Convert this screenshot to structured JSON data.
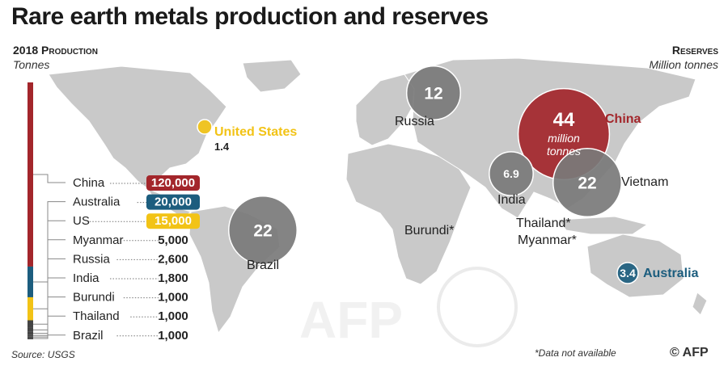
{
  "title": "Rare earth metals production and reserves",
  "production": {
    "heading": "2018 Production",
    "unit": "Tonnes"
  },
  "reserves": {
    "heading": "Reserves",
    "unit": "Million tonnes"
  },
  "source": "Source: USGS",
  "note": "*Data not available",
  "credit": "© AFP",
  "colors": {
    "china": "#a3262b",
    "australia": "#1c5d7e",
    "us": "#f2c316",
    "other": "#444444",
    "map": "#c9c9c9",
    "bubble": "#7a7a7a"
  },
  "chart_data": [
    {
      "type": "bar",
      "title": "2018 Production",
      "ylabel": "Tonnes",
      "categories": [
        "China",
        "Australia",
        "US",
        "Myanmar",
        "Russia",
        "India",
        "Burundi",
        "Thailand",
        "Brazil"
      ],
      "labels": [
        "120,000",
        "20,000",
        "15,000",
        "5,000",
        "2,600",
        "1,800",
        "1,000",
        "1,000",
        "1,000"
      ],
      "values": [
        120000,
        20000,
        15000,
        5000,
        2600,
        1800,
        1000,
        1000,
        1000
      ]
    },
    {
      "type": "scatter",
      "title": "Reserves",
      "ylabel": "Million tonnes",
      "points": [
        {
          "country": "China",
          "value": 44,
          "label": "44",
          "sublabel": "million tonnes"
        },
        {
          "country": "Brazil",
          "value": 22,
          "label": "22"
        },
        {
          "country": "Vietnam",
          "value": 22,
          "label": "22"
        },
        {
          "country": "Russia",
          "value": 12,
          "label": "12"
        },
        {
          "country": "India",
          "value": 6.9,
          "label": "6.9"
        },
        {
          "country": "Australia",
          "value": 3.4,
          "label": "3.4"
        },
        {
          "country": "United States",
          "value": 1.4,
          "label": "1.4"
        },
        {
          "country": "Burundi*",
          "value": null
        },
        {
          "country": "Thailand*",
          "value": null
        },
        {
          "country": "Myanmar*",
          "value": null
        }
      ]
    }
  ]
}
